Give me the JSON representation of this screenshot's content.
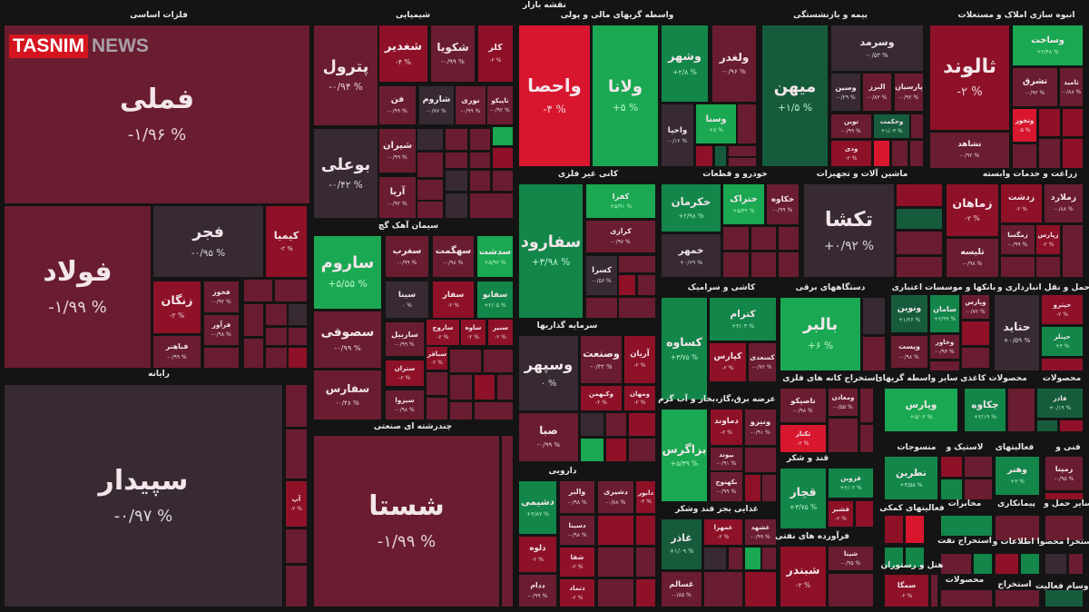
{
  "title": "نقشه بازار",
  "logo": {
    "part1": "TASNIM",
    "part2": "NEWS"
  },
  "palette": {
    "m": "#6a1d30",
    "r": "#8e1128",
    "R": "#d8172f",
    "g": "#13864a",
    "G": "#1aa852",
    "d": "#372a33",
    "k": "#165c3c"
  },
  "sectors": [
    {
      "title": "فلزات اساسی",
      "tiles": [
        {
          "symbol": "فملی",
          "change": "-۱/۹۶ %",
          "tone": "m"
        },
        {
          "symbol": "فولاد",
          "change": "-۱/۹۹ %",
          "tone": "m"
        },
        {
          "symbol": "فجر",
          "change": "-۰/۹۵ %",
          "tone": "d"
        },
        {
          "symbol": "کیمیا",
          "change": "-۲ %",
          "tone": "r"
        },
        {
          "symbol": "زنگان",
          "change": "-۲ %",
          "tone": "r"
        },
        {
          "symbol": "فخوز",
          "change": "-۰/۹۲ %",
          "tone": "m"
        },
        {
          "symbol": "فرآور",
          "change": "-۰/۹۸ %",
          "tone": "m"
        },
        {
          "symbol": "فباهنر",
          "change": "-۰/۹۹ %",
          "tone": "m"
        }
      ]
    },
    {
      "title": "رایانه",
      "tiles": [
        {
          "symbol": "سپیدار",
          "change": "-۰/۹۷ %",
          "tone": "d"
        },
        {
          "symbol": "آپ",
          "change": "-۲ %",
          "tone": "r"
        }
      ]
    },
    {
      "title": "شیمیایی",
      "tiles": [
        {
          "symbol": "پترول",
          "change": "-۰/۹۴ %",
          "tone": "m"
        },
        {
          "symbol": "بوعلی",
          "change": "-۰/۴۲ %",
          "tone": "d"
        },
        {
          "symbol": "شغدیر",
          "change": "-۴ %",
          "tone": "r"
        },
        {
          "symbol": "شکویا",
          "change": "-۰/۹۹ %",
          "tone": "m"
        },
        {
          "symbol": "کلر",
          "change": "-۲ %",
          "tone": "r"
        },
        {
          "symbol": "فن",
          "change": "-۰/۹۹ %",
          "tone": "m"
        },
        {
          "symbol": "شاروم",
          "change": "-۰/۷۷ %",
          "tone": "d"
        },
        {
          "symbol": "نوری",
          "change": "-۰/۹۹ %",
          "tone": "m"
        },
        {
          "symbol": "تاپیکو",
          "change": "-۰/۹۲ %",
          "tone": "m"
        },
        {
          "symbol": "شیران",
          "change": "-۰/۹۹ %",
          "tone": "m"
        },
        {
          "symbol": "آریا",
          "change": "-۰/۹۲ %",
          "tone": "m"
        }
      ]
    },
    {
      "title": "سیمان آهک گچ",
      "tiles": [
        {
          "symbol": "ساروم",
          "change": "+۵/۵۵ %",
          "tone": "G"
        },
        {
          "symbol": "سصوفی",
          "change": "-۰/۹۹ %",
          "tone": "m"
        },
        {
          "symbol": "سفارس",
          "change": "-۰/۴۸ %",
          "tone": "m"
        },
        {
          "symbol": "سغرب",
          "change": "-۰/۹۹ %",
          "tone": "m"
        },
        {
          "symbol": "سهگمت",
          "change": "-۰/۹۸ %",
          "tone": "m"
        },
        {
          "symbol": "سدشت",
          "change": "+۵/۹۲ %",
          "tone": "G"
        },
        {
          "symbol": "سینا",
          "change": "۰ %",
          "tone": "d"
        },
        {
          "symbol": "سفار",
          "change": "-۲ %",
          "tone": "r"
        },
        {
          "symbol": "سفانو",
          "change": "+۲/۰۵ %",
          "tone": "g"
        },
        {
          "symbol": "ساربیل",
          "change": "-۰/۹۹ %",
          "tone": "m"
        },
        {
          "symbol": "ساروج",
          "change": "-۲ %",
          "tone": "r"
        },
        {
          "symbol": "ساوه",
          "change": "-۲ %",
          "tone": "r"
        },
        {
          "symbol": "سنیر",
          "change": "-۲ %",
          "tone": "r"
        },
        {
          "symbol": "ستران",
          "change": "-۲ %",
          "tone": "r"
        },
        {
          "symbol": "سباقر",
          "change": "-۲ %",
          "tone": "r"
        },
        {
          "symbol": "سیزوا",
          "change": "-۰/۹۸ %",
          "tone": "m"
        }
      ]
    },
    {
      "title": "چندرشته ای صنعتی",
      "tiles": [
        {
          "symbol": "شستا",
          "change": "-۱/۹۹ %",
          "tone": "m"
        }
      ]
    },
    {
      "title": "واسطه گریهای مالی و پولی",
      "tiles": [
        {
          "symbol": "واحصا",
          "change": "-۴ %",
          "tone": "R"
        },
        {
          "symbol": "ولانا",
          "change": "+۵ %",
          "tone": "G"
        },
        {
          "symbol": "وشهر",
          "change": "+۲/۸ %",
          "tone": "g"
        },
        {
          "symbol": "ولغدر",
          "change": "-۰/۹۶ %",
          "tone": "m"
        },
        {
          "symbol": "واحیا",
          "change": "-۰/۱۲ %",
          "tone": "d"
        },
        {
          "symbol": "وسنا",
          "change": "+۵ %",
          "tone": "G"
        }
      ]
    },
    {
      "title": "کانی غیر فلزی",
      "tiles": [
        {
          "symbol": "سفارود",
          "change": "+۳/۹۸ %",
          "tone": "g"
        },
        {
          "symbol": "کفرا",
          "change": "+۵/۹۱ %",
          "tone": "G"
        },
        {
          "symbol": "کرازی",
          "change": "-۰/۹۷ %",
          "tone": "m"
        },
        {
          "symbol": "کسرا",
          "change": "-۰/۵۶ %",
          "tone": "d"
        }
      ]
    },
    {
      "title": "سرمایه گذاریها",
      "tiles": [
        {
          "symbol": "وسپهر",
          "change": "۰ %",
          "tone": "d"
        },
        {
          "symbol": "وصنعت",
          "change": "-۰/۳۲ %",
          "tone": "m"
        },
        {
          "symbol": "آریان",
          "change": "-۲ %",
          "tone": "r"
        },
        {
          "symbol": "وکبهمن",
          "change": "-۲ %",
          "tone": "r"
        },
        {
          "symbol": "ومهان",
          "change": "-۲ %",
          "tone": "r"
        },
        {
          "symbol": "صبا",
          "change": "-۰/۹۹ %",
          "tone": "m"
        }
      ]
    },
    {
      "title": "دارویی",
      "tiles": [
        {
          "symbol": "دشیمی",
          "change": "+۲/۸۷ %",
          "tone": "g"
        },
        {
          "symbol": "والبر",
          "change": "-۰/۹۸ %",
          "tone": "m"
        },
        {
          "symbol": "دشیری",
          "change": "-۰/۸۸ %",
          "tone": "m"
        },
        {
          "symbol": "دابور",
          "change": "-۲ %",
          "tone": "r"
        },
        {
          "symbol": "دسینا",
          "change": "-۰/۹۸ %",
          "tone": "m"
        },
        {
          "symbol": "دلوه",
          "change": "-۲ %",
          "tone": "r"
        },
        {
          "symbol": "شفا",
          "change": "-۲ %",
          "tone": "r"
        },
        {
          "symbol": "ددام",
          "change": "-۰/۹۹ %",
          "tone": "m"
        },
        {
          "symbol": "دتماد",
          "change": "-۲ %",
          "tone": "r"
        }
      ]
    },
    {
      "title": "خودرو و قطعات",
      "tiles": [
        {
          "symbol": "خکرمان",
          "change": "+۲/۹۸ %",
          "tone": "g"
        },
        {
          "symbol": "ختراک",
          "change": "+۵/۳۲ %",
          "tone": "G"
        },
        {
          "symbol": "خکاوه",
          "change": "-۰/۹۹ %",
          "tone": "m"
        },
        {
          "symbol": "خمهر",
          "change": "+۰/۶۹ %",
          "tone": "d"
        }
      ]
    },
    {
      "title": "کاشی و سرامیک",
      "tiles": [
        {
          "symbol": "کساوه",
          "change": "+۳/۷۵ %",
          "tone": "g"
        },
        {
          "symbol": "کترام",
          "change": "+۲/۰۳ %",
          "tone": "g"
        },
        {
          "symbol": "کپارس",
          "change": "-۲ %",
          "tone": "r"
        },
        {
          "symbol": "کسعدی",
          "change": "-۰/۷۲ %",
          "tone": "m"
        }
      ]
    },
    {
      "title": "عرضه برق،گاز،بخار و آب گرم",
      "tiles": [
        {
          "symbol": "بزاگرس",
          "change": "+۵/۳۹ %",
          "tone": "G"
        },
        {
          "symbol": "دماوند",
          "change": "-۲ %",
          "tone": "r"
        },
        {
          "symbol": "ونیرو",
          "change": "-۰/۹۱ %",
          "tone": "m"
        },
        {
          "symbol": "بیوند",
          "change": "-۰/۹۱ %",
          "tone": "m"
        },
        {
          "symbol": "بکهنوج",
          "change": "-۰/۹۹ %",
          "tone": "m"
        }
      ]
    },
    {
      "title": "غذایی بجز قند وشکر",
      "tiles": [
        {
          "symbol": "غاذر",
          "change": "+۱/۰۹ %",
          "tone": "k"
        },
        {
          "symbol": "غمهرا",
          "change": "-۲ %",
          "tone": "r"
        },
        {
          "symbol": "غشهد",
          "change": "-۰/۹۹ %",
          "tone": "m"
        },
        {
          "symbol": "غسالم",
          "change": "-۰/۸۵ %",
          "tone": "m"
        }
      ]
    },
    {
      "title": "بیمه و بازنشستگی",
      "tiles": [
        {
          "symbol": "میهن",
          "change": "+۱/۵ %",
          "tone": "k"
        },
        {
          "symbol": "وسرمد",
          "change": "-۰/۵۳ %",
          "tone": "d"
        },
        {
          "symbol": "وسین",
          "change": "-۰/۲۹ %",
          "tone": "d"
        },
        {
          "symbol": "البرز",
          "change": "-۰/۸۳ %",
          "tone": "m"
        },
        {
          "symbol": "پارسیان",
          "change": "-۰/۹۲ %",
          "tone": "m"
        },
        {
          "symbol": "نوین",
          "change": "-۰/۹۹ %",
          "tone": "m"
        },
        {
          "symbol": "وحکمت",
          "change": "+۱/۰۳ %",
          "tone": "k"
        },
        {
          "symbol": "ودی",
          "change": "-۲ %",
          "tone": "r"
        }
      ]
    },
    {
      "title": "ماشین آلات و تجهیزات",
      "tiles": [
        {
          "symbol": "تکشا",
          "change": "+۰/۹۲ %",
          "tone": "d"
        }
      ]
    },
    {
      "title": "دستگاههای برقی",
      "tiles": [
        {
          "symbol": "بالبر",
          "change": "+۶ %",
          "tone": "G"
        }
      ]
    },
    {
      "title": "بانکها و موسسات اعتباری",
      "tiles": [
        {
          "symbol": "ونوین",
          "change": "+۱/۲۶ %",
          "tone": "k"
        },
        {
          "symbol": "سامان",
          "change": "+۲/۹۹ %",
          "tone": "g"
        },
        {
          "symbol": "وپارس",
          "change": "-۰/۷۲ %",
          "tone": "m"
        },
        {
          "symbol": "وخاور",
          "change": "-۰/۹۳ %",
          "tone": "m"
        },
        {
          "symbol": "ویست",
          "change": "-۰/۹۸ %",
          "tone": "m"
        }
      ]
    },
    {
      "title": "انبوه سازی املاک و مستغلات",
      "tiles": [
        {
          "symbol": "ثالوند",
          "change": "-۲ %",
          "tone": "r"
        },
        {
          "symbol": "وساخت",
          "change": "+۲/۴۸ %",
          "tone": "G"
        },
        {
          "symbol": "تشرق",
          "change": "-۰/۹۲ %",
          "tone": "m"
        },
        {
          "symbol": "ثامید",
          "change": "-۰/۸۸ %",
          "tone": "m"
        },
        {
          "symbol": "تشاهد",
          "change": "-۰/۹۲ %",
          "tone": "m"
        },
        {
          "symbol": "وتخوز",
          "change": "-۵ %",
          "tone": "R"
        }
      ]
    },
    {
      "title": "زراعت و خدمات وابسته",
      "tiles": [
        {
          "symbol": "زماهان",
          "change": "-۲ %",
          "tone": "r"
        },
        {
          "symbol": "زدشت",
          "change": "-۲ %",
          "tone": "r"
        },
        {
          "symbol": "زملارد",
          "change": "-۰/۸۸ %",
          "tone": "m"
        },
        {
          "symbol": "تلیسه",
          "change": "-۰/۹۸ %",
          "tone": "m"
        },
        {
          "symbol": "زمگسا",
          "change": "-۰/۹۹ %",
          "tone": "m"
        },
        {
          "symbol": "زپارس",
          "change": "-۲ %",
          "tone": "r"
        }
      ]
    },
    {
      "title": "حمل و نقل انبارداری و",
      "tiles": [
        {
          "symbol": "حتاید",
          "change": "+۰/۵۹ %",
          "tone": "d"
        },
        {
          "symbol": "حپترو",
          "change": "-۲ %",
          "tone": "r"
        },
        {
          "symbol": "حپنلر",
          "change": "+۳ %",
          "tone": "g"
        }
      ]
    },
    {
      "title": "استخراج کانه های فلزی",
      "tiles": [
        {
          "symbol": "تاصیکو",
          "change": "-۰/۹۸ %",
          "tone": "m"
        },
        {
          "symbol": "ومعادن",
          "change": "-۰/۵۵ %",
          "tone": "m"
        },
        {
          "symbol": "تکنار",
          "change": "-۲ %",
          "tone": "R"
        }
      ]
    },
    {
      "title": "قند و شکر",
      "tiles": [
        {
          "symbol": "قچار",
          "change": "+۳/۷۵ %",
          "tone": "g"
        },
        {
          "symbol": "قزوین",
          "change": "+۲/۰۲ %",
          "tone": "g"
        },
        {
          "symbol": "قشیر",
          "change": "-۲ %",
          "tone": "r"
        }
      ]
    },
    {
      "title": "فرآورده های نفتی",
      "tiles": [
        {
          "symbol": "شبندر",
          "change": "-۲ %",
          "tone": "r"
        },
        {
          "symbol": "شپنا",
          "change": "-۰/۹۵ %",
          "tone": "m"
        }
      ]
    },
    {
      "title": "سایر واسطه گریهای",
      "tiles": [
        {
          "symbol": "وپارس",
          "change": "+۵/۰۲ %",
          "tone": "G"
        }
      ]
    },
    {
      "title": "محصولات کاغذی",
      "tiles": [
        {
          "symbol": "چکاوه",
          "change": "+۲/۱۹ %",
          "tone": "g"
        }
      ]
    },
    {
      "title": "محصولات",
      "tiles": [
        {
          "symbol": "فاذر",
          "change": "+۰/۱۹ %",
          "tone": "k"
        }
      ]
    },
    {
      "title": "منسوجات",
      "tiles": [
        {
          "symbol": "نطرین",
          "change": "+۳/۵۵ %",
          "tone": "g"
        }
      ]
    },
    {
      "title": "لاستیک و",
      "tiles": []
    },
    {
      "title": "فعالیتهای",
      "tiles": [
        {
          "symbol": "وهنر",
          "change": "+۳ %",
          "tone": "g"
        }
      ]
    },
    {
      "title": "فنی و",
      "tiles": [
        {
          "symbol": "رمپنا",
          "change": "-۰/۹۵ %",
          "tone": "m"
        }
      ]
    },
    {
      "title": "فعالیتهای کمکی",
      "tiles": []
    },
    {
      "title": "مخابرات",
      "tiles": []
    },
    {
      "title": "پیمانکاری",
      "tiles": []
    },
    {
      "title": "سایر حمل و",
      "tiles": []
    },
    {
      "title": "استخراج نفت",
      "tiles": []
    },
    {
      "title": "استخرا محصوا اطلاعات و",
      "tiles": []
    },
    {
      "title": "هتل و رستوران",
      "tiles": [
        {
          "symbol": "سمگا",
          "change": "-۲ %",
          "tone": "r"
        }
      ]
    },
    {
      "title": "محصولات",
      "tiles": []
    },
    {
      "title": "استخراج",
      "tiles": []
    },
    {
      "title": "خ وسام فعالیت",
      "tiles": []
    }
  ]
}
